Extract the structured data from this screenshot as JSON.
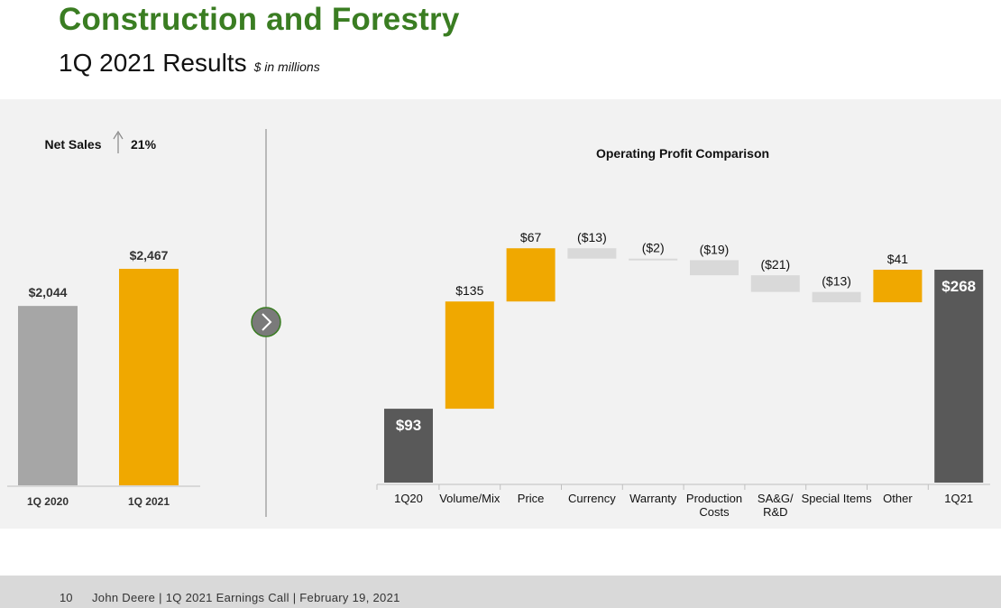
{
  "header": {
    "title": "Construction and Forestry",
    "subtitle": "1Q 2021 Results",
    "subtitle_note": "$ in millions"
  },
  "footer": {
    "page_number": "10",
    "source": "John Deere | 1Q 2021 Earnings Call | February 19, 2021"
  },
  "next_icon": "chevron-right-icon",
  "colors": {
    "title_green": "#3a7d22",
    "gold": "#f0a800",
    "prior_gray": "#a6a6a6",
    "dark": "#595959",
    "negative": "#d9d9d9"
  },
  "chart_data": [
    {
      "type": "bar",
      "title": "Net Sales",
      "change_label": "21%",
      "change_direction": "up",
      "categories": [
        "1Q 2020",
        "1Q 2021"
      ],
      "values": [
        2044,
        2467
      ],
      "value_labels": [
        "$2,044",
        "$2,467"
      ],
      "ylim": [
        0,
        2600
      ]
    },
    {
      "type": "bar",
      "subtype": "waterfall",
      "title": "Operating Profit Comparison",
      "categories": [
        "1Q20",
        "Volume/Mix",
        "Price",
        "Currency",
        "Warranty",
        "Production Costs",
        "SA&G/ R&D",
        "Special Items",
        "Other",
        "1Q21"
      ],
      "values": [
        93,
        135,
        67,
        -13,
        -2,
        -19,
        -21,
        -13,
        41,
        268
      ],
      "value_labels": [
        "$93",
        "$135",
        "$67",
        "($13)",
        "($2)",
        "($19)",
        "($21)",
        "($13)",
        "$41",
        "$268"
      ],
      "kinds": [
        "total",
        "increase",
        "increase",
        "decrease",
        "decrease",
        "decrease",
        "decrease",
        "decrease",
        "increase",
        "total"
      ],
      "ylim": [
        0,
        300
      ]
    }
  ]
}
